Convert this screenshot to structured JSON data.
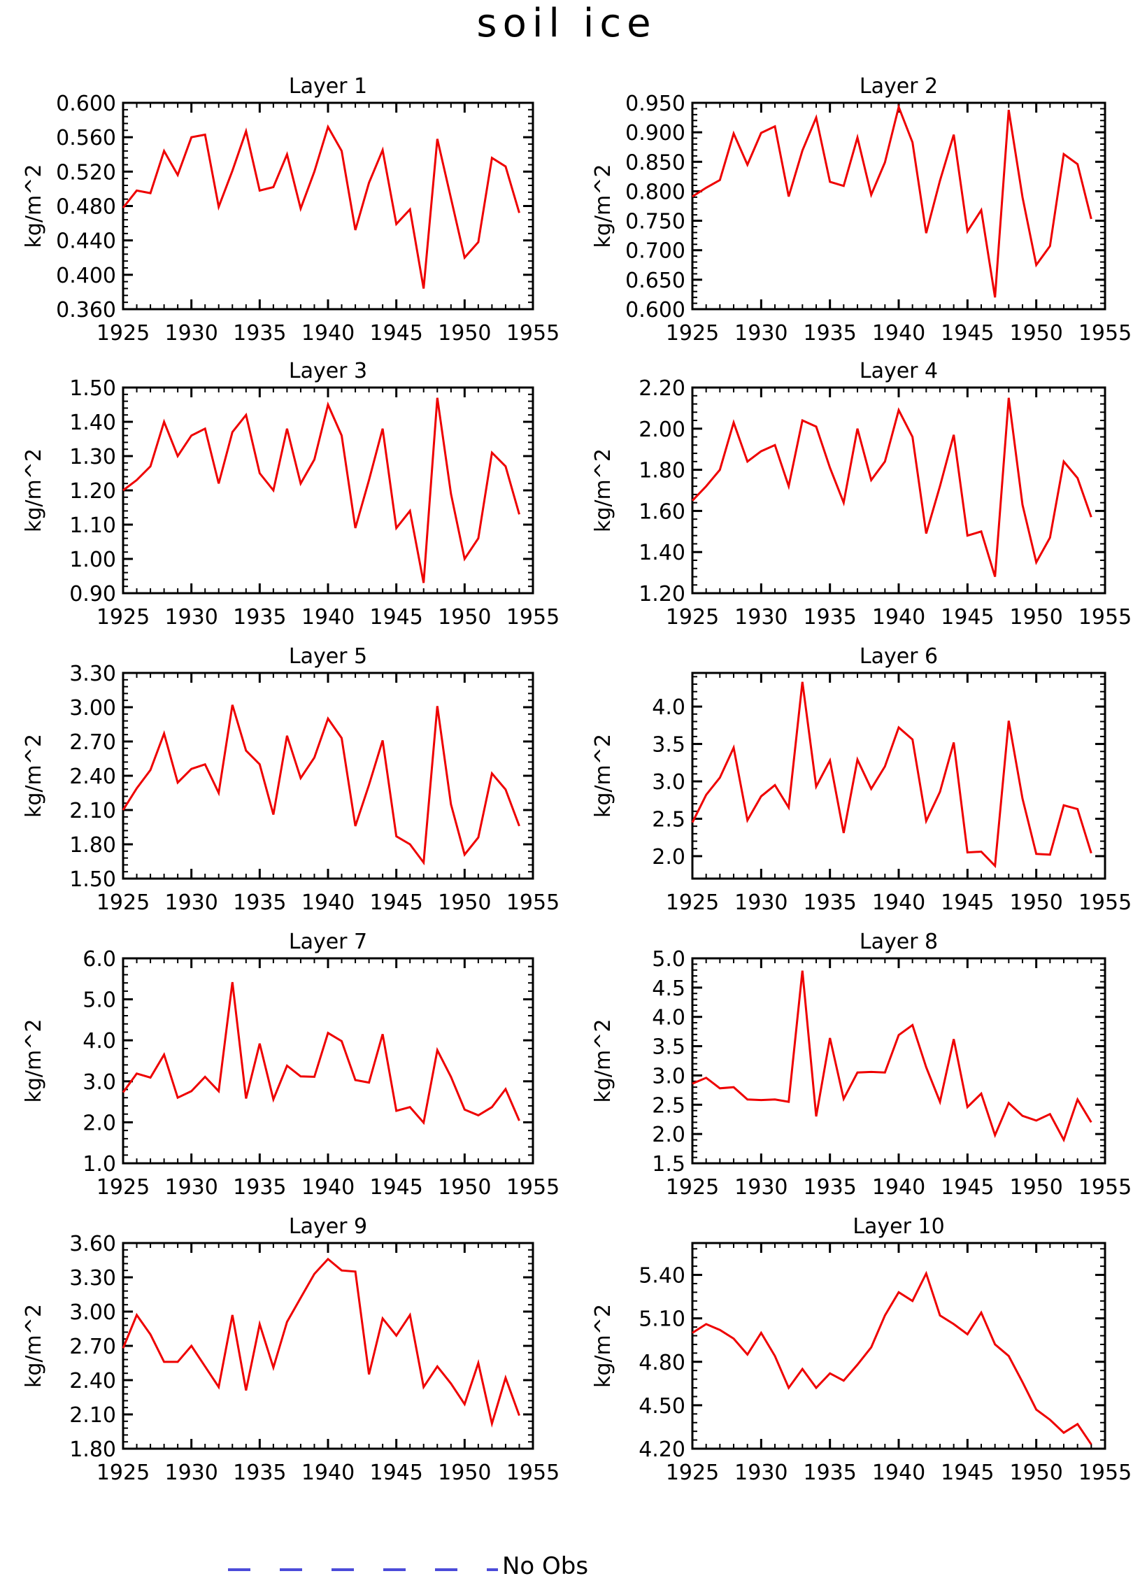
{
  "title": "soil ice",
  "legend": {
    "label": "No Obs",
    "color": "#4b4bd9",
    "style": "dashed"
  },
  "line_color": "#ee0000",
  "chart_data": [
    {
      "type": "line",
      "title": "Layer 1",
      "ylabel": "kg/m^2",
      "xlim": [
        1925,
        1955
      ],
      "ylim": [
        0.36,
        0.6
      ],
      "yticks": [
        0.36,
        0.4,
        0.44,
        0.48,
        0.52,
        0.56,
        0.6
      ],
      "ytick_labels": [
        "0.360",
        "0.400",
        "0.440",
        "0.480",
        "0.520",
        "0.560",
        "0.600"
      ],
      "xticks": [
        1925,
        1930,
        1935,
        1940,
        1945,
        1950,
        1955
      ],
      "x": [
        1925,
        1926,
        1927,
        1928,
        1929,
        1930,
        1931,
        1932,
        1933,
        1934,
        1935,
        1936,
        1937,
        1938,
        1939,
        1940,
        1941,
        1942,
        1943,
        1944,
        1945,
        1946,
        1947,
        1948,
        1949,
        1950,
        1951,
        1952,
        1953,
        1954
      ],
      "y": [
        0.478,
        0.498,
        0.495,
        0.544,
        0.516,
        0.56,
        0.563,
        0.479,
        0.521,
        0.567,
        0.498,
        0.502,
        0.54,
        0.477,
        0.52,
        0.572,
        0.544,
        0.452,
        0.507,
        0.545,
        0.459,
        0.476,
        0.384,
        0.558,
        0.489,
        0.42,
        0.438,
        0.536,
        0.526,
        0.472
      ]
    },
    {
      "type": "line",
      "title": "Layer 2",
      "ylabel": "kg/m^2",
      "xlim": [
        1925,
        1955
      ],
      "ylim": [
        0.6,
        0.95
      ],
      "yticks": [
        0.6,
        0.65,
        0.7,
        0.75,
        0.8,
        0.85,
        0.9,
        0.95
      ],
      "ytick_labels": [
        "0.600",
        "0.650",
        "0.700",
        "0.750",
        "0.800",
        "0.850",
        "0.900",
        "0.950"
      ],
      "xticks": [
        1925,
        1930,
        1935,
        1940,
        1945,
        1950,
        1955
      ],
      "x": [
        1925,
        1926,
        1927,
        1928,
        1929,
        1930,
        1931,
        1932,
        1933,
        1934,
        1935,
        1936,
        1937,
        1938,
        1939,
        1940,
        1941,
        1942,
        1943,
        1944,
        1945,
        1946,
        1947,
        1948,
        1949,
        1950,
        1951,
        1952,
        1953,
        1954
      ],
      "y": [
        0.791,
        0.806,
        0.819,
        0.898,
        0.845,
        0.899,
        0.91,
        0.791,
        0.869,
        0.925,
        0.816,
        0.809,
        0.891,
        0.794,
        0.849,
        0.943,
        0.883,
        0.729,
        0.818,
        0.896,
        0.732,
        0.768,
        0.62,
        0.938,
        0.79,
        0.675,
        0.707,
        0.863,
        0.846,
        0.753
      ]
    },
    {
      "type": "line",
      "title": "Layer 3",
      "ylabel": "kg/m^2",
      "xlim": [
        1925,
        1955
      ],
      "ylim": [
        0.9,
        1.5
      ],
      "yticks": [
        0.9,
        1.0,
        1.1,
        1.2,
        1.3,
        1.4,
        1.5
      ],
      "ytick_labels": [
        "0.90",
        "1.00",
        "1.10",
        "1.20",
        "1.30",
        "1.40",
        "1.50"
      ],
      "xticks": [
        1925,
        1930,
        1935,
        1940,
        1945,
        1950,
        1955
      ],
      "x": [
        1925,
        1926,
        1927,
        1928,
        1929,
        1930,
        1931,
        1932,
        1933,
        1934,
        1935,
        1936,
        1937,
        1938,
        1939,
        1940,
        1941,
        1942,
        1943,
        1944,
        1945,
        1946,
        1947,
        1948,
        1949,
        1950,
        1951,
        1952,
        1953,
        1954
      ],
      "y": [
        1.2,
        1.23,
        1.27,
        1.4,
        1.3,
        1.36,
        1.38,
        1.22,
        1.37,
        1.42,
        1.25,
        1.2,
        1.38,
        1.22,
        1.29,
        1.45,
        1.36,
        1.09,
        1.23,
        1.38,
        1.09,
        1.14,
        0.93,
        1.47,
        1.19,
        1.0,
        1.06,
        1.31,
        1.27,
        1.13
      ]
    },
    {
      "type": "line",
      "title": "Layer 4",
      "ylabel": "kg/m^2",
      "xlim": [
        1925,
        1955
      ],
      "ylim": [
        1.2,
        2.2
      ],
      "yticks": [
        1.2,
        1.4,
        1.6,
        1.8,
        2.0,
        2.2
      ],
      "ytick_labels": [
        "1.20",
        "1.40",
        "1.60",
        "1.80",
        "2.00",
        "2.20"
      ],
      "xticks": [
        1925,
        1930,
        1935,
        1940,
        1945,
        1950,
        1955
      ],
      "x": [
        1925,
        1926,
        1927,
        1928,
        1929,
        1930,
        1931,
        1932,
        1933,
        1934,
        1935,
        1936,
        1937,
        1938,
        1939,
        1940,
        1941,
        1942,
        1943,
        1944,
        1945,
        1946,
        1947,
        1948,
        1949,
        1950,
        1951,
        1952,
        1953,
        1954
      ],
      "y": [
        1.65,
        1.72,
        1.8,
        2.03,
        1.84,
        1.89,
        1.92,
        1.72,
        2.04,
        2.01,
        1.81,
        1.64,
        2.0,
        1.75,
        1.84,
        2.09,
        1.96,
        1.49,
        1.72,
        1.97,
        1.48,
        1.5,
        1.28,
        2.15,
        1.63,
        1.35,
        1.47,
        1.84,
        1.76,
        1.57
      ]
    },
    {
      "type": "line",
      "title": "Layer 5",
      "ylabel": "kg/m^2",
      "xlim": [
        1925,
        1955
      ],
      "ylim": [
        1.5,
        3.3
      ],
      "yticks": [
        1.5,
        1.8,
        2.1,
        2.4,
        2.7,
        3.0,
        3.3
      ],
      "ytick_labels": [
        "1.50",
        "1.80",
        "2.10",
        "2.40",
        "2.70",
        "3.00",
        "3.30"
      ],
      "xticks": [
        1925,
        1930,
        1935,
        1940,
        1945,
        1950,
        1955
      ],
      "x": [
        1925,
        1926,
        1927,
        1928,
        1929,
        1930,
        1931,
        1932,
        1933,
        1934,
        1935,
        1936,
        1937,
        1938,
        1939,
        1940,
        1941,
        1942,
        1943,
        1944,
        1945,
        1946,
        1947,
        1948,
        1949,
        1950,
        1951,
        1952,
        1953,
        1954
      ],
      "y": [
        2.1,
        2.29,
        2.45,
        2.77,
        2.34,
        2.46,
        2.5,
        2.25,
        3.02,
        2.62,
        2.5,
        2.06,
        2.75,
        2.38,
        2.56,
        2.9,
        2.73,
        1.96,
        2.32,
        2.71,
        1.87,
        1.8,
        1.64,
        3.01,
        2.15,
        1.71,
        1.86,
        2.42,
        2.28,
        1.96
      ]
    },
    {
      "type": "line",
      "title": "Layer 6",
      "ylabel": "kg/m^2",
      "xlim": [
        1925,
        1955
      ],
      "ylim": [
        1.7,
        4.45
      ],
      "yticks": [
        2.0,
        2.5,
        3.0,
        3.5,
        4.0
      ],
      "ytick_labels": [
        "2.0",
        "2.5",
        "3.0",
        "3.5",
        "4.0"
      ],
      "xticks": [
        1925,
        1930,
        1935,
        1940,
        1945,
        1950,
        1955
      ],
      "x": [
        1925,
        1926,
        1927,
        1928,
        1929,
        1930,
        1931,
        1932,
        1933,
        1934,
        1935,
        1936,
        1937,
        1938,
        1939,
        1940,
        1941,
        1942,
        1943,
        1944,
        1945,
        1946,
        1947,
        1948,
        1949,
        1950,
        1951,
        1952,
        1953,
        1954
      ],
      "y": [
        2.45,
        2.82,
        3.05,
        3.45,
        2.48,
        2.8,
        2.95,
        2.65,
        4.33,
        2.93,
        3.28,
        2.31,
        3.29,
        2.9,
        3.2,
        3.72,
        3.56,
        2.47,
        2.86,
        3.52,
        2.05,
        2.06,
        1.87,
        3.81,
        2.77,
        2.03,
        2.02,
        2.68,
        2.63,
        2.04
      ]
    },
    {
      "type": "line",
      "title": "Layer 7",
      "ylabel": "kg/m^2",
      "xlim": [
        1925,
        1955
      ],
      "ylim": [
        1.0,
        6.0
      ],
      "yticks": [
        1.0,
        2.0,
        3.0,
        4.0,
        5.0,
        6.0
      ],
      "ytick_labels": [
        "1.0",
        "2.0",
        "3.0",
        "4.0",
        "5.0",
        "6.0"
      ],
      "xticks": [
        1925,
        1930,
        1935,
        1940,
        1945,
        1950,
        1955
      ],
      "x": [
        1925,
        1926,
        1927,
        1928,
        1929,
        1930,
        1931,
        1932,
        1933,
        1934,
        1935,
        1936,
        1937,
        1938,
        1939,
        1940,
        1941,
        1942,
        1943,
        1944,
        1945,
        1946,
        1947,
        1948,
        1949,
        1950,
        1951,
        1952,
        1953,
        1954
      ],
      "y": [
        2.73,
        3.19,
        3.09,
        3.65,
        2.6,
        2.76,
        3.11,
        2.76,
        5.42,
        2.58,
        3.92,
        2.56,
        3.38,
        3.12,
        3.11,
        4.18,
        3.98,
        3.03,
        2.97,
        4.15,
        2.28,
        2.37,
        1.99,
        3.76,
        3.11,
        2.31,
        2.17,
        2.37,
        2.81,
        2.04
      ]
    },
    {
      "type": "line",
      "title": "Layer 8",
      "ylabel": "kg/m^2",
      "xlim": [
        1925,
        1955
      ],
      "ylim": [
        1.5,
        5.0
      ],
      "yticks": [
        1.5,
        2.0,
        2.5,
        3.0,
        3.5,
        4.0,
        4.5,
        5.0
      ],
      "ytick_labels": [
        "1.5",
        "2.0",
        "2.5",
        "3.0",
        "3.5",
        "4.0",
        "4.5",
        "5.0"
      ],
      "xticks": [
        1925,
        1930,
        1935,
        1940,
        1945,
        1950,
        1955
      ],
      "x": [
        1925,
        1926,
        1927,
        1928,
        1929,
        1930,
        1931,
        1932,
        1933,
        1934,
        1935,
        1936,
        1937,
        1938,
        1939,
        1940,
        1941,
        1942,
        1943,
        1944,
        1945,
        1946,
        1947,
        1948,
        1949,
        1950,
        1951,
        1952,
        1953,
        1954
      ],
      "y": [
        2.86,
        2.96,
        2.78,
        2.8,
        2.59,
        2.58,
        2.59,
        2.55,
        4.79,
        2.3,
        3.64,
        2.6,
        3.05,
        3.06,
        3.05,
        3.69,
        3.86,
        3.14,
        2.55,
        3.62,
        2.46,
        2.69,
        1.98,
        2.53,
        2.31,
        2.23,
        2.34,
        1.9,
        2.59,
        2.2
      ]
    },
    {
      "type": "line",
      "title": "Layer 9",
      "ylabel": "kg/m^2",
      "xlim": [
        1925,
        1955
      ],
      "ylim": [
        1.8,
        3.6
      ],
      "yticks": [
        1.8,
        2.1,
        2.4,
        2.7,
        3.0,
        3.3,
        3.6
      ],
      "ytick_labels": [
        "1.80",
        "2.10",
        "2.40",
        "2.70",
        "3.00",
        "3.30",
        "3.60"
      ],
      "xticks": [
        1925,
        1930,
        1935,
        1940,
        1945,
        1950,
        1955
      ],
      "x": [
        1925,
        1926,
        1927,
        1928,
        1929,
        1930,
        1931,
        1932,
        1933,
        1934,
        1935,
        1936,
        1937,
        1938,
        1939,
        1940,
        1941,
        1942,
        1943,
        1944,
        1945,
        1946,
        1947,
        1948,
        1949,
        1950,
        1951,
        1952,
        1953,
        1954
      ],
      "y": [
        2.68,
        2.97,
        2.8,
        2.56,
        2.56,
        2.7,
        2.52,
        2.34,
        2.97,
        2.31,
        2.89,
        2.51,
        2.91,
        3.12,
        3.33,
        3.46,
        3.36,
        3.35,
        2.45,
        2.94,
        2.79,
        2.97,
        2.34,
        2.52,
        2.37,
        2.19,
        2.55,
        2.02,
        2.42,
        2.09
      ]
    },
    {
      "type": "line",
      "title": "Layer 10",
      "ylabel": "kg/m^2",
      "xlim": [
        1925,
        1955
      ],
      "ylim": [
        4.2,
        5.62
      ],
      "yticks": [
        4.2,
        4.5,
        4.8,
        5.1,
        5.4
      ],
      "ytick_labels": [
        "4.20",
        "4.50",
        "4.80",
        "5.10",
        "5.40"
      ],
      "xticks": [
        1925,
        1930,
        1935,
        1940,
        1945,
        1950,
        1955
      ],
      "x": [
        1925,
        1926,
        1927,
        1928,
        1929,
        1930,
        1931,
        1932,
        1933,
        1934,
        1935,
        1936,
        1937,
        1938,
        1939,
        1940,
        1941,
        1942,
        1943,
        1944,
        1945,
        1946,
        1947,
        1948,
        1949,
        1950,
        1951,
        1952,
        1953,
        1954
      ],
      "y": [
        5.0,
        5.06,
        5.02,
        4.96,
        4.85,
        5.0,
        4.84,
        4.62,
        4.75,
        4.62,
        4.72,
        4.67,
        4.78,
        4.9,
        5.12,
        5.28,
        5.22,
        5.41,
        5.12,
        5.06,
        4.99,
        5.14,
        4.92,
        4.84,
        4.66,
        4.47,
        4.4,
        4.31,
        4.37,
        4.23
      ]
    }
  ]
}
